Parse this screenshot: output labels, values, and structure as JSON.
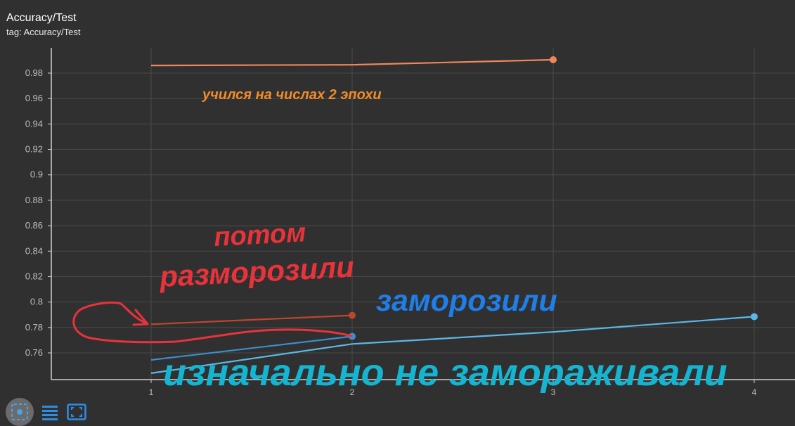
{
  "card": {
    "title": "Accuracy/Test",
    "tag": "tag: Accuracy/Test"
  },
  "toolbar": {
    "buttons": [
      {
        "icon": "fit-domain-icon",
        "active": true
      },
      {
        "icon": "data-table-icon",
        "active": false
      },
      {
        "icon": "expand-icon",
        "active": false
      }
    ]
  },
  "colors": {
    "background": "#303030",
    "grid": "#4a4a4a",
    "axis": "#d0d0d0"
  },
  "chart_data": {
    "type": "line",
    "title": "Accuracy/Test",
    "xlabel": "",
    "ylabel": "",
    "xlim": [
      0.5,
      4.1
    ],
    "ylim": [
      0.74,
      1.0
    ],
    "xticks": [
      1,
      2,
      3,
      4
    ],
    "yticks": [
      0.76,
      0.78,
      0.8,
      0.82,
      0.84,
      0.86,
      0.88,
      0.9,
      0.92,
      0.94,
      0.96,
      0.98
    ],
    "grid": true,
    "series": [
      {
        "color": "#f0875a",
        "x": [
          1,
          2,
          3
        ],
        "y": [
          0.986,
          0.9865,
          0.9905
        ]
      },
      {
        "color": "#c0452e",
        "x": [
          1,
          2
        ],
        "y": [
          0.7825,
          0.7895
        ]
      },
      {
        "color": "#3a8fd1",
        "x": [
          1,
          2
        ],
        "y": [
          0.7545,
          0.773
        ]
      },
      {
        "color": "#5ab8e8",
        "x": [
          1,
          2,
          3,
          4
        ],
        "y": [
          0.744,
          0.767,
          0.7765,
          0.7885
        ]
      }
    ],
    "annotations": [
      {
        "text": "учился на числах 2 эпохи",
        "color": "#f28c28"
      },
      {
        "text": "потом",
        "color": "#e8333a"
      },
      {
        "text": "разморозили",
        "color": "#e8333a"
      },
      {
        "text": "заморозили",
        "color": "#1f7ee8"
      },
      {
        "text": "изначально не замораживали",
        "color": "#15b5d2"
      }
    ]
  }
}
